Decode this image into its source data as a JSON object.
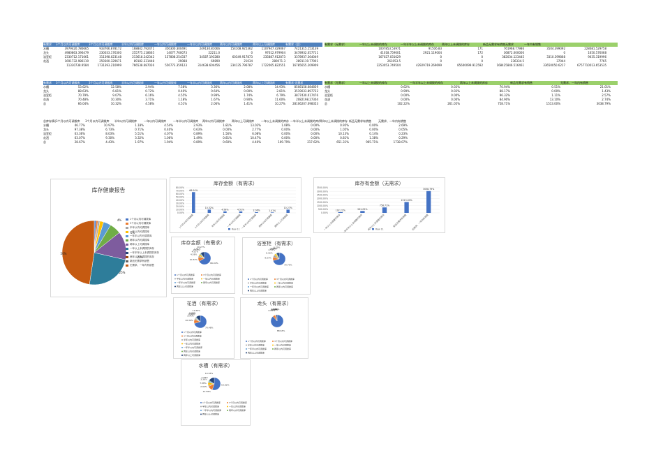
{
  "colors": {
    "blue": "#4472c4",
    "orange": "#ed7d31",
    "gray": "#a5a5a5",
    "gold": "#ffc000",
    "lightblue": "#5b9bd5",
    "green": "#70ad47",
    "navy": "#264478",
    "brown": "#9e480e",
    "olive": "#636363",
    "teal": "#43682b",
    "pie_big": "#c55a11",
    "pie_teal": "#2e7d9a",
    "pie_purple": "#7e5c9e"
  },
  "table1": {
    "headers": [
      "有需求",
      "3个月以内可调拨库",
      "3个月以内可调拨库",
      "半年以内可调拨库",
      "一年以内可调拨库",
      "一年半以内可调拨库",
      "两年以内可调拨库",
      "两年以上可调拨库",
      "有需求（总）"
    ],
    "rows": [
      [
        "水槽",
        "3979420.786665",
        "933766.878172",
        "168842.792471",
        "356300.300491",
        "249130.81066",
        "154108.925362",
        "1107947.429067",
        "7421315.153139"
      ],
      [
        "龙头",
        "4980863.396479",
        "230033.176300",
        "255775.118665",
        "14077.760073",
        "22211.0",
        "0",
        "97612.979904",
        "3478932.057711"
      ],
      [
        "浴室柜",
        "2330712.171061",
        "311398.023148",
        "213618.242342",
        "157808.254337",
        "34587.193280",
        "60349.917873",
        "235887.912873",
        "3378937.364049"
      ],
      [
        "花洒",
        "1691732.986119",
        "259300.329671",
        "89182.331448",
        "29088",
        "69890",
        "21034",
        "280071.3",
        "2891119.77901"
      ],
      [
        "",
        "11330738.9584",
        "1731393.210999",
        "766538.687026",
        "556773.359123",
        "314638.604456",
        "234135.796787",
        "1722065.822551",
        "16785655.209909"
      ]
    ]
  },
  "table2": {
    "headers": [
      "有需求（无需求）",
      "一年以上未调拨的库存",
      "一年半年以上未调拨的库存",
      "两年以上未调拨的库存",
      "新品无需求有销售无需求",
      "一年内有销售"
    ],
    "rows": [
      [
        "",
        "1007853.53971",
        "91506.83",
        "171",
        "761968.77986",
        "3504.399092",
        "228681.529758"
      ],
      [
        "",
        "41018.759001",
        "2921.119004",
        "172",
        "36872.000000",
        "0",
        "1650.576068"
      ],
      [
        "",
        "167027.031629",
        "0",
        "0",
        "382034.123445",
        "3310.399868",
        "9035.319996"
      ],
      [
        "",
        "261053.5",
        "0",
        "0",
        "236334.5",
        "37044",
        "7765"
      ],
      [
        "",
        "2253053.749504",
        "42929719.269699",
        "85600099.912592",
        "168425846.516461",
        "33650050.6217",
        "6757710013.653535"
      ]
    ]
  },
  "table3": {
    "headers": [
      "有需求",
      "3个月以内可调拨库",
      "3个月以内可调拨库",
      "半年以内可调拨库",
      "一年以内可调拨库",
      "一年半以内可调拨库",
      "两年以内可调拨库",
      "两年以上可调拨库",
      "有需求·无需求"
    ],
    "rows": [
      [
        "水槽",
        "53.62%",
        "12.58%",
        "2.94%",
        "7.58%",
        "3.36%",
        "2.08%",
        "14.93%",
        "8508158.684859"
      ],
      [
        "龙头",
        "88.63%",
        "6.81%",
        "0.72%",
        "0.40%",
        "0.64%",
        "0.00%",
        "2.81%",
        "3519033.897722"
      ],
      [
        "浴室柜",
        "70.79%",
        "9.07%",
        "6.16%",
        "4.55%",
        "0.99%",
        "1.74%",
        "6.79%",
        "3877430.017476"
      ],
      [
        "花洒",
        "70.48%",
        "10.30%",
        "3.71%",
        "1.18%",
        "1.67%",
        "0.90%",
        "11.60%",
        "2082198.27304"
      ],
      [
        "总",
        "66.04%",
        "10.32%",
        "4.58%",
        "4.51%",
        "2.06%",
        "1.41%",
        "10.27%",
        "28106207.098353"
      ]
    ]
  },
  "table4": {
    "headers": [
      "有需求（无需求）",
      "一年以上未调拨的库存",
      "一年半年以上未调拨的库存",
      "两年以上未调拨的库存",
      "新品无需求有销售",
      "无需求、一年内有销售"
    ],
    "rows": [
      [
        "水槽",
        "0.62%",
        "0.02%",
        "70.94%",
        "0.51%",
        "21.01%"
      ],
      [
        "龙头",
        "0.99%",
        "0.02%",
        "88.17%",
        "0.00%",
        "1.43%"
      ],
      [
        "浴室柜",
        "0.00%",
        "0.00%",
        "96.32%",
        "1.11%",
        "2.57%"
      ],
      [
        "花洒",
        "0.00%",
        "0.00%",
        "84.90%",
        "13.10%",
        "2.74%"
      ],
      [
        "总",
        "102.22%",
        "261.05%",
        "758.71%",
        "1513.00%",
        "3038.79%"
      ]
    ]
  },
  "table5": {
    "headers": [
      "总库存情况",
      "3个月以内可调拨库",
      "3个月以内可调拨库",
      "半年以内可调拨库",
      "一年以内可调拨库",
      "一年半以内可调拨库",
      "两年以内可调拨库",
      "两年以上可调拨库",
      "一年以上未调拨的库存",
      "一年半以上未调拨的库存",
      "两年以上未调拨的库存",
      "新品无需求有销售",
      "无需求、一年内有销售"
    ],
    "rows": [
      [
        "水槽",
        "46.77%",
        "10.97%",
        "1.18%",
        "4.54%",
        "2.93%",
        "1.81%",
        "13.02%",
        "1.08%",
        "0.00%",
        "0.95%",
        "0.00%",
        "2.69%"
      ],
      [
        "龙头",
        "97.38%",
        "6.73%",
        "0.71%",
        "0.40%",
        "0.63%",
        "0.00%",
        "2.77%",
        "0.00%",
        "0.00%",
        "1.05%",
        "0.00%",
        "0.05%"
      ],
      [
        "浴室柜",
        "63.36%",
        "8.03%",
        "5.51%",
        "4.07%",
        "0.89%",
        "1.56%",
        "6.08%",
        "0.00%",
        "0.00%",
        "10.13%",
        "0.14%",
        "0.23%"
      ],
      [
        "花洒",
        "63.07%",
        "9.30%",
        "3.32%",
        "1.06%",
        "1.49%",
        "0.81%",
        "10.47%",
        "0.00%",
        "0.00%",
        "0.81%",
        "1.38%",
        "0.29%"
      ],
      [
        "总",
        "28.67%",
        "4.43%",
        "1.97%",
        "1.94%",
        "0.89%",
        "0.60%",
        "4.40%",
        "109.79%",
        "217.62%",
        "651.31%",
        "965.71%",
        "1738.07%"
      ]
    ]
  },
  "pie_main": {
    "title": "库存健康报告",
    "legend": [
      "1个月以内可调拨库",
      "3个月以内可调拨库",
      "半年以内可调拨库",
      "一年以内可调拨库",
      "一年半以内可调拨库",
      "两年以内可调拨库",
      "两年以上可调拨库",
      "一年以上未调拨的库存",
      "一年半年以上未调拨的库存",
      "两年以上未调拨的库存",
      "新品无需求有销售",
      "无需求、一年内有销售"
    ],
    "labels": [
      "4%",
      "6%",
      "15%",
      "25%",
      "50%"
    ]
  },
  "chart_data": [
    {
      "type": "pie",
      "title": "库存健康报告",
      "slices": [
        {
          "label": "1个月以内可调拨库",
          "value": 1,
          "color": "#4472c4"
        },
        {
          "label": "3个月以内可调拨库",
          "value": 1,
          "color": "#ed7d31"
        },
        {
          "label": "半年以内可调拨库",
          "value": 1,
          "color": "#a5a5a5"
        },
        {
          "label": "一年以内可调拨库",
          "value": 2,
          "color": "#ffc000"
        },
        {
          "label": "一年半以内可调拨库",
          "value": 4,
          "color": "#5b9bd5"
        },
        {
          "label": "两年以内可调拨库",
          "value": 6,
          "color": "#70ad47"
        },
        {
          "label": "两年以上可调拨库",
          "value": 15,
          "color": "#7e5c9e"
        },
        {
          "label": "一年以上未调拨的库存",
          "value": 25,
          "color": "#2e7d9a"
        },
        {
          "label": "无需求、一年内有销售",
          "value": 50,
          "color": "#c55a11"
        }
      ]
    },
    {
      "type": "bar",
      "title": "库存金额（有需求）",
      "categories": [
        "1个月以内可调拨库",
        "3个月以内可调拨库",
        "半年以内可调拨库",
        "一年以内可调拨库",
        "一年半以内可调拨库",
        "两年以内可调拨库",
        "两年以上可调拨库"
      ],
      "values": [
        66.04,
        10.32,
        4.58,
        4.51,
        2.06,
        1.41,
        10.27
      ],
      "data_labels": [
        "66.04%",
        "10.32%",
        "4.58%",
        "4.51%",
        "2.06%",
        "1.41%",
        "10.27%"
      ],
      "legend": "Row 11",
      "ylim": [
        0,
        80
      ],
      "ticks": [
        "0.00%",
        "10.00%",
        "20.00%",
        "30.00%",
        "40.00%",
        "50.00%",
        "60.00%",
        "70.00%",
        "80.00%"
      ]
    },
    {
      "type": "bar",
      "title": "库存有金额（无需求）",
      "categories": [
        "一年以上未调拨的库存",
        "一年半年以上未调拨的库存",
        "两年以上未调拨的库存",
        "新品无需求有销售",
        "无需求、一年内有销售"
      ],
      "values": [
        102.22,
        261.05,
        758.71,
        1513.0,
        3038.79
      ],
      "data_labels": [
        "102.22%",
        "261.05%",
        "758.71%",
        "1513.00%",
        "3038.79%"
      ],
      "legend": "Row 11",
      "ylim": [
        0,
        3500
      ],
      "ticks": [
        "0.00%",
        "500.00%",
        "1000.00%",
        "1500.00%",
        "2000.00%",
        "2500.00%",
        "3000.00%",
        "3500.00%"
      ]
    },
    {
      "type": "pie",
      "title": "库存金额（有需求）",
      "values": [
        66.04,
        10.32,
        4.58,
        4.51,
        2.06,
        1.41,
        10.27
      ],
      "labels": [
        "66.04%",
        "10.32%",
        "4.58%",
        "4.51%",
        "2.06%",
        "1.41%",
        "10.27%"
      ]
    },
    {
      "type": "pie",
      "title": "浴室柜（有需求）",
      "values": [
        70.79,
        9.07,
        6.16,
        4.55,
        0.99,
        1.74,
        6.79
      ],
      "labels": [
        "70.79%",
        "9.07%",
        "6.16%",
        "4.55%",
        "0.99%",
        "1.74%",
        "6.79%"
      ]
    },
    {
      "type": "pie",
      "title": "花洒（有需求）",
      "values": [
        70.48,
        10.3,
        3.71,
        1.18,
        1.67,
        0.9,
        11.6
      ],
      "labels": [
        "70.48%",
        "10.30%",
        "3.71%",
        "1.18%",
        "1.67%",
        "0.90%",
        "11.60%"
      ]
    },
    {
      "type": "pie",
      "title": "龙头（有需求）",
      "values": [
        88.63,
        6.81,
        0.72,
        0.4,
        0.64,
        0.0,
        2.81
      ],
      "labels": [
        "88.63%",
        "6.81%",
        "0.72%",
        "0.40%",
        "0.64%",
        "0.00%",
        "2.81%"
      ]
    },
    {
      "type": "pie",
      "title": "水槽（有需求）",
      "values": [
        53.62,
        12.58,
        2.94,
        7.58,
        3.36,
        2.08,
        14.93
      ],
      "labels": [
        "53.62%",
        "12.58%",
        "2.94%",
        "7.58%",
        "3.36%",
        "2.08%",
        "14.93%"
      ]
    }
  ],
  "small_legend": [
    "1个月以内可调拨库",
    "3个月以内可调拨库",
    "半年以内可调拨库",
    "一年以内可调拨库",
    "一年半以内可调拨库",
    "两年以内可调拨库",
    "两年以上可调拨库"
  ]
}
